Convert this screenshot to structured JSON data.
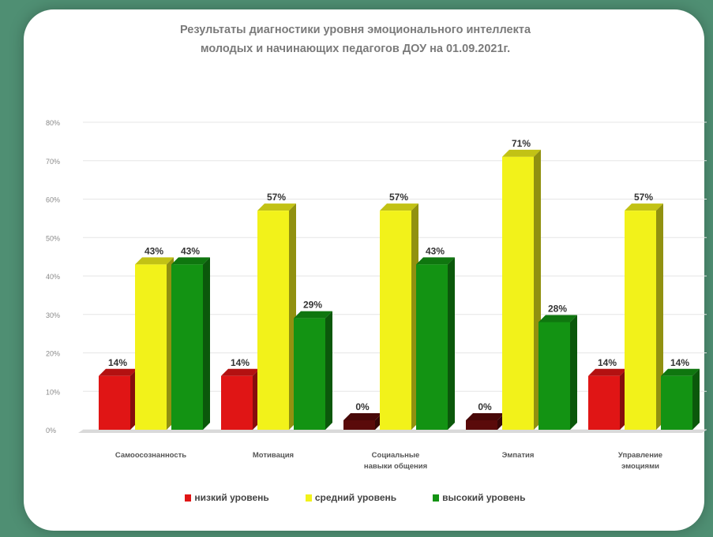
{
  "chart_data": {
    "type": "bar",
    "title": "Результаты диагностики уровня эмоционального интеллекта молодых и начинающих педагогов ДОУ на 01.09.2021г.",
    "title_lines": [
      "Результаты диагностики уровня эмоционального интеллекта",
      "молодых и начинающих педагогов ДОУ на 01.09.2021г."
    ],
    "categories": [
      [
        "Самоосознанность"
      ],
      [
        "Мотивация"
      ],
      [
        "Социальные",
        "навыки общения"
      ],
      [
        "Эмпатия"
      ],
      [
        "Управление",
        "эмоциями"
      ]
    ],
    "series": [
      {
        "name": "низкий уровень",
        "color": "#e01515",
        "values": [
          14,
          14,
          0,
          0,
          14
        ],
        "labels": [
          "14%",
          "14%",
          "0%",
          "0%",
          "14%"
        ]
      },
      {
        "name": "средний уровень",
        "color": "#f2f21a",
        "values": [
          43,
          57,
          57,
          71,
          57
        ],
        "labels": [
          "43%",
          "57%",
          "57%",
          "71%",
          "57%"
        ]
      },
      {
        "name": "высокий уровень",
        "color": "#139313",
        "values": [
          43,
          29,
          43,
          28,
          14
        ],
        "labels": [
          "43%",
          "29%",
          "43%",
          "28%",
          "14%"
        ]
      }
    ],
    "yticks": [
      "0%",
      "10%",
      "20%",
      "30%",
      "40%",
      "50%",
      "60%",
      "70%",
      "80%"
    ],
    "ylim": [
      0,
      80
    ],
    "grid": true,
    "legend_position": "bottom"
  }
}
